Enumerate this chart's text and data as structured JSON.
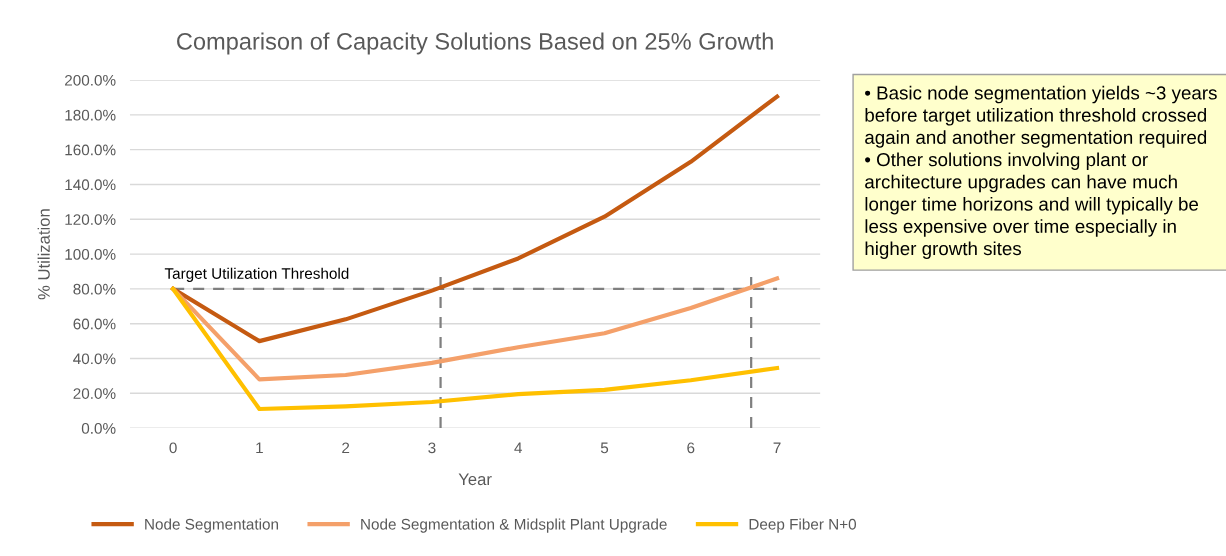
{
  "chart_data": {
    "type": "line",
    "title": "Comparison of Capacity Solutions Based on 25% Growth",
    "xlabel": "Year",
    "ylabel": "% Utilization",
    "x": [
      0,
      1,
      2,
      3,
      4,
      5,
      6,
      7
    ],
    "series": [
      {
        "name": "Node Segmentation",
        "color": "#c55a11",
        "values": [
          80,
          50,
          62.5,
          79,
          97.5,
          121.5,
          153,
          190.5
        ]
      },
      {
        "name": "Node Segmentation & Midsplit Plant Upgrade",
        "color": "#f4a06a",
        "values": [
          80,
          28,
          30.5,
          37.5,
          46.5,
          54.5,
          69,
          86
        ]
      },
      {
        "name": "Deep Fiber N+0",
        "color": "#ffc000",
        "values": [
          80,
          11,
          12.5,
          15,
          19.5,
          22,
          27.5,
          34.5
        ]
      }
    ],
    "xlim": [
      -0.5,
      7.5
    ],
    "xticks": [
      0,
      1,
      2,
      3,
      4,
      5,
      6,
      7
    ],
    "ylim": [
      0,
      200
    ],
    "yticks": [
      {
        "value": 0,
        "label": "0.0%"
      },
      {
        "value": 20,
        "label": "20.0%"
      },
      {
        "value": 40,
        "label": "40.0%"
      },
      {
        "value": 60,
        "label": "60.0%"
      },
      {
        "value": 80,
        "label": "80.0%"
      },
      {
        "value": 100,
        "label": "100.0%"
      },
      {
        "value": 120,
        "label": "120.0%"
      },
      {
        "value": 140,
        "label": "140.0%"
      },
      {
        "value": 160,
        "label": "160.0%"
      },
      {
        "value": 180,
        "label": "180.0%"
      },
      {
        "value": 200,
        "label": "200.0%"
      }
    ],
    "ref_lines": [
      {
        "axis": "y",
        "value": 80,
        "label": "Target Utilization Threshold",
        "color": "#7f7f7f",
        "line_style": "dashed"
      },
      {
        "axis": "x",
        "value": 3.1,
        "color": "#7f7f7f",
        "line_style": "dashed"
      },
      {
        "axis": "x",
        "value": 6.7,
        "color": "#7f7f7f",
        "line_style": "dashed"
      }
    ],
    "annotations": [
      "• Basic node segmentation yields ~3 years before target utilization threshold crossed again and another segmentation required\n• Other solutions involving plant or architecture upgrades can have much longer time horizons and will typically be less expensive over time especially in higher growth sites"
    ],
    "grid": "y",
    "legend": "bottom",
    "marker": "none",
    "line_style": "solid"
  }
}
